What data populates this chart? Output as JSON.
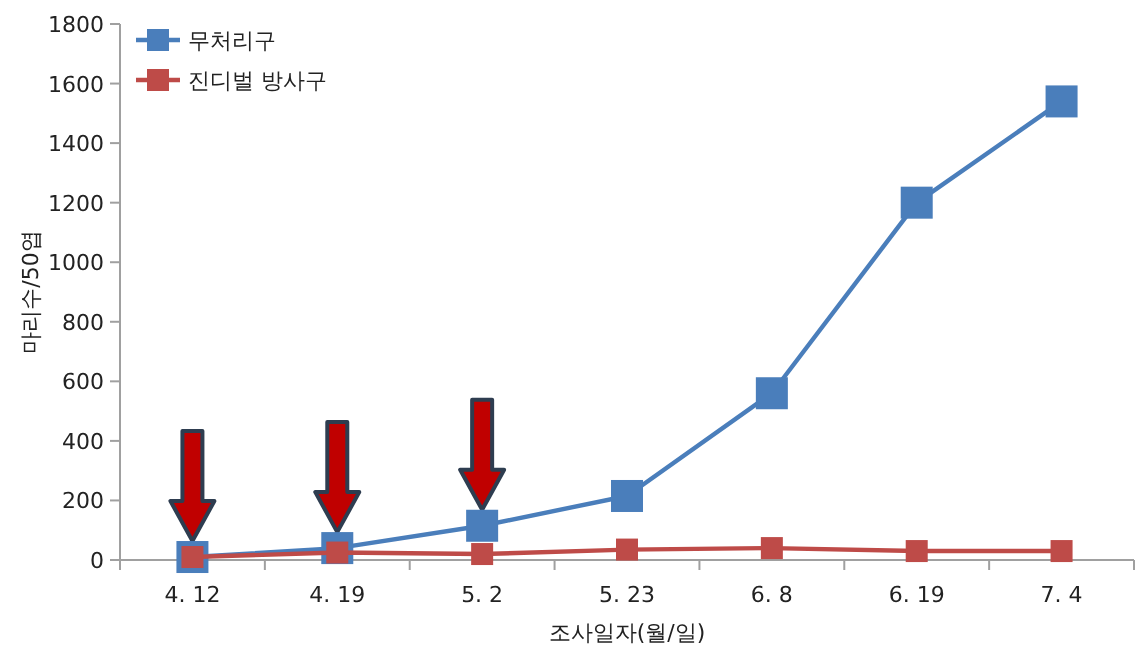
{
  "chart_data": {
    "type": "line",
    "xlabel": "조사일자(월/일)",
    "ylabel": "마리수/50엽",
    "categories": [
      "4. 12",
      "4. 19",
      "5. 2",
      "5. 23",
      "6. 8",
      "6. 19",
      "7. 4"
    ],
    "series": [
      {
        "name": "무처리구",
        "color": "#4a7ebb",
        "values": [
          10,
          40,
          115,
          215,
          560,
          1200,
          1540
        ]
      },
      {
        "name": "진디벌 방사구",
        "color": "#be4b48",
        "values": [
          10,
          25,
          20,
          35,
          40,
          30,
          30
        ]
      }
    ],
    "ylim": [
      0,
      1800
    ],
    "yticks": [
      0,
      200,
      400,
      600,
      800,
      1000,
      1200,
      1400,
      1600,
      1800
    ],
    "grid": false,
    "legend": "top left",
    "marker": "square",
    "line_style": "solid"
  }
}
